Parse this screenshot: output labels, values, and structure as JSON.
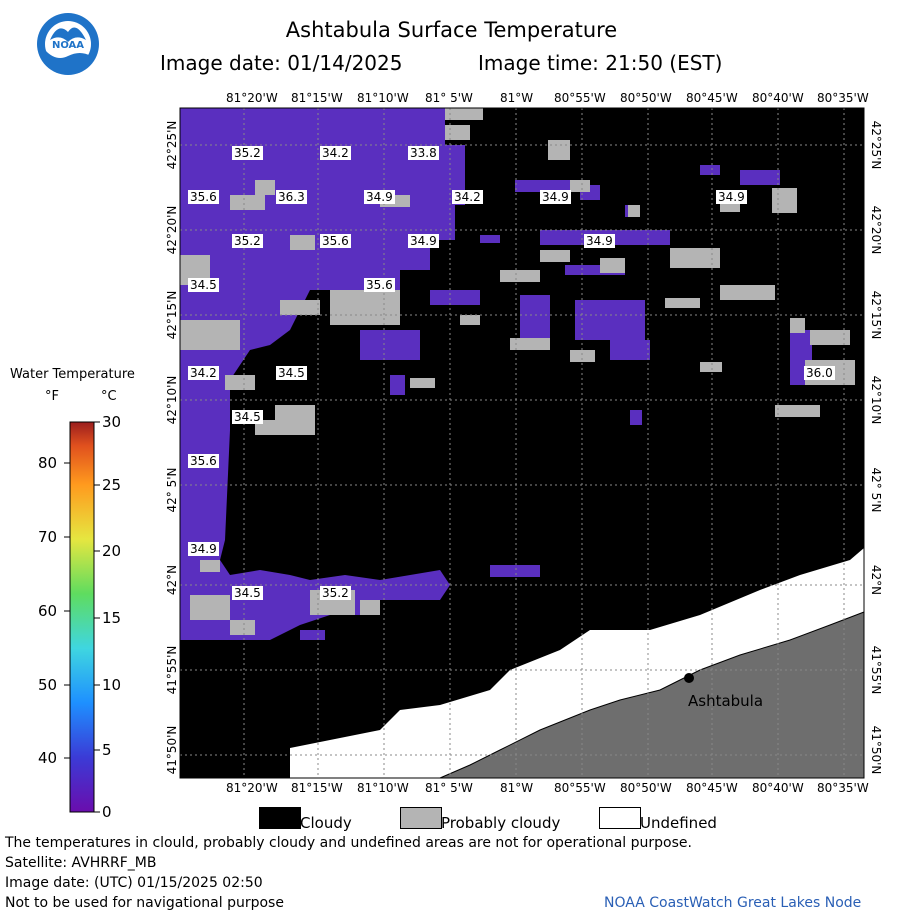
{
  "header": {
    "title": "Ashtabula Surface Temperature",
    "image_date_label": "Image date: 01/14/2025",
    "image_time_label": "Image time: 21:50 (EST)"
  },
  "logo": {
    "text": "NOAA"
  },
  "axes": {
    "top_longitudes": [
      "81°20'W",
      "81°15'W",
      "81°10'W",
      "81° 5'W",
      "81°W",
      "80°55'W",
      "80°50'W",
      "80°45'W",
      "80°40'W",
      "80°35'W"
    ],
    "bottom_longitudes": [
      "81°20'W",
      "81°15'W",
      "81°10'W",
      "81° 5'W",
      "81°W",
      "80°55'W",
      "80°50'W",
      "80°45'W",
      "80°40'W",
      "80°35'W"
    ],
    "latitudes": [
      "42°25'N",
      "42°20'N",
      "42°15'N",
      "42°10'N",
      "42° 5'N",
      "42°N",
      "41°55'N",
      "41°50'N"
    ]
  },
  "map": {
    "temperature_labels": [
      "35.2",
      "34.2",
      "33.8",
      "35.6",
      "36.3",
      "34.9",
      "34.2",
      "34.9",
      "34.9",
      "35.2",
      "35.6",
      "34.9",
      "34.9",
      "34.5",
      "35.6",
      "34.2",
      "34.5",
      "36.0",
      "34.5",
      "35.6",
      "34.9",
      "34.5",
      "35.2"
    ],
    "city_label": "Ashtabula",
    "colors": {
      "cloudy": "#000000",
      "probably_cloudy": "#b4b4b4",
      "undefined": "#ffffff",
      "water_cold": "#6a2fc8",
      "land": "#6e6e6e"
    }
  },
  "legend": {
    "title": "Water Temperature",
    "unit_f": "°F",
    "unit_c": "°C",
    "f_ticks": [
      "40",
      "50",
      "60",
      "70",
      "80"
    ],
    "c_ticks": [
      "0",
      "5",
      "10",
      "15",
      "20",
      "25",
      "30"
    ],
    "gradient_colors": [
      "#6a0dad",
      "#3b3bd6",
      "#1e90ff",
      "#3fd6e0",
      "#5fdc5f",
      "#e6e640",
      "#ff9a1e",
      "#e0501e",
      "#9b1e1e"
    ]
  },
  "keys": {
    "cloudy": "Cloudy",
    "probably_cloudy": "Probably cloudy",
    "undefined": "Undefined"
  },
  "footer": {
    "disclaimer": "The temperatures in clould, probably cloudy and undefined areas are not for operational purpose.",
    "satellite": "Satellite: AVHRRF_MB",
    "utc_date": "Image date: (UTC) 01/15/2025  02:50",
    "nav_warning": "Not to be used for navigational purpose",
    "credit": "NOAA CoastWatch Great Lakes Node"
  }
}
